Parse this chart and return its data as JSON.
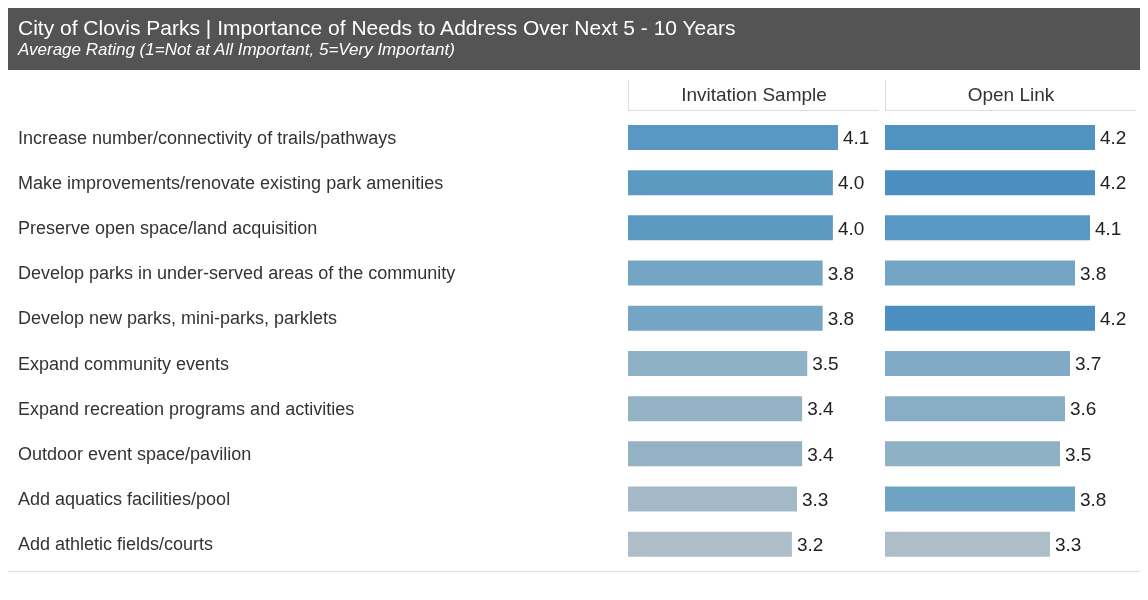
{
  "chart_data": [
    {
      "type": "other",
      "title": "City of Clovis Parks  |  Importance of Needs to Address Over Next 5 - 10 Years",
      "subtitle": "Average Rating (1=Not at All Important, 5=Very Important)"
    },
    {
      "type": "bar",
      "orientation": "horizontal",
      "title": "Invitation Sample",
      "tick_labels": "y",
      "categories": [
        "Increase number/connectivity of trails/pathways",
        "Make improvements/renovate existing park amenities",
        "Preserve open space/land acquisition",
        "Develop parks in under-served areas of the community",
        "Develop new parks, mini-parks, parklets",
        "Expand community events",
        "Expand recreation programs and activities",
        "Outdoor event space/pavilion",
        "Add aquatics facilities/pool",
        "Add athletic fields/courts"
      ],
      "values": [
        4.1,
        4.0,
        4.0,
        3.8,
        3.8,
        3.5,
        3.4,
        3.4,
        3.3,
        3.2
      ],
      "value_labels": [
        "4.1",
        "4.0",
        "4.0",
        "3.8",
        "3.8",
        "3.5",
        "3.4",
        "3.4",
        "3.3",
        "3.2"
      ],
      "colors": [
        "#5898c2",
        "#5c9ac2",
        "#5c9ac2",
        "#75a5c4",
        "#75a5c4",
        "#8fb1c6",
        "#93b3c5",
        "#93b3c5",
        "#a3b9c8",
        "#aebec9"
      ]
    },
    {
      "type": "bar",
      "orientation": "horizontal",
      "title": "Open Link",
      "tick_labels": false,
      "categories": [
        null,
        null,
        null,
        null,
        null,
        null,
        null,
        null,
        null,
        null
      ],
      "values": [
        4.2,
        4.2,
        4.1,
        3.8,
        4.2,
        3.7,
        3.6,
        3.5,
        3.8,
        3.3
      ],
      "value_labels": [
        "4.2",
        "4.2",
        "4.1",
        "3.8",
        "4.2",
        "3.7",
        "3.6",
        "3.5",
        "3.8",
        "3.3"
      ],
      "colors": [
        "#4f93c1",
        "#4a8fbf",
        "#5898c2",
        "#75a5c4",
        "#4a8fbf",
        "#80aac6",
        "#88aec6",
        "#8fb1c6",
        "#6fa3c3",
        "#aebec9"
      ]
    }
  ]
}
